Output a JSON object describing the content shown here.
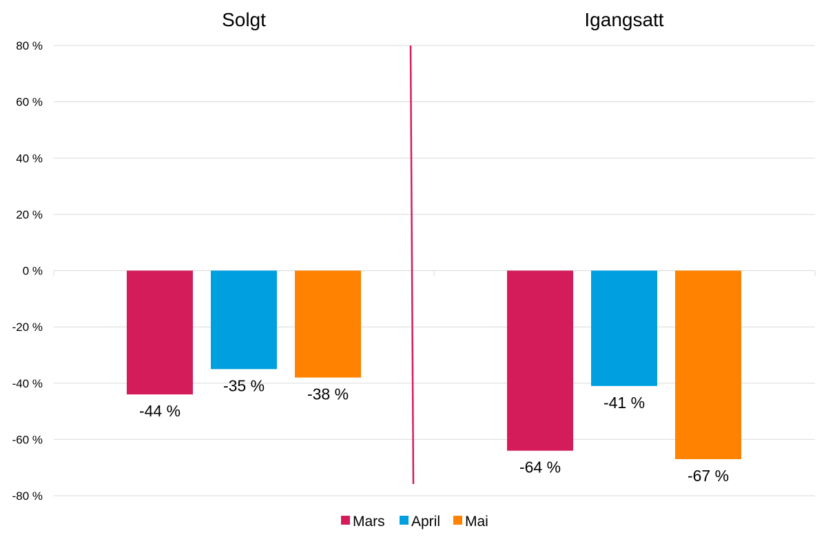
{
  "chart_data": {
    "type": "bar",
    "panels": [
      {
        "title": "Solgt",
        "categories": [
          "Mars",
          "April",
          "Mai"
        ],
        "values": [
          -44,
          -35,
          -38
        ],
        "labels": [
          "-44 %",
          "-35 %",
          "-38 %"
        ]
      },
      {
        "title": "Igangsatt",
        "categories": [
          "Mars",
          "April",
          "Mai"
        ],
        "values": [
          -64,
          -41,
          -67
        ],
        "labels": [
          "-64 %",
          "-41 %",
          "-67 %"
        ]
      }
    ],
    "series": [
      {
        "name": "Mars",
        "color": "#d41c5b"
      },
      {
        "name": "April",
        "color": "#00a0e0"
      },
      {
        "name": "Mai",
        "color": "#ff8200"
      }
    ],
    "ylim": [
      -80,
      80
    ],
    "yticks": [
      80,
      60,
      40,
      20,
      0,
      -20,
      -40,
      -60,
      -80
    ],
    "ytick_labels": [
      "80 %",
      "60 %",
      "40 %",
      "20 %",
      "0 %",
      "-20 %",
      "-40 %",
      "-60 %",
      "-80 %"
    ],
    "grid": true,
    "legend_position": "bottom",
    "divider_color": "#d41c5b",
    "xlabel": "",
    "ylabel": ""
  }
}
